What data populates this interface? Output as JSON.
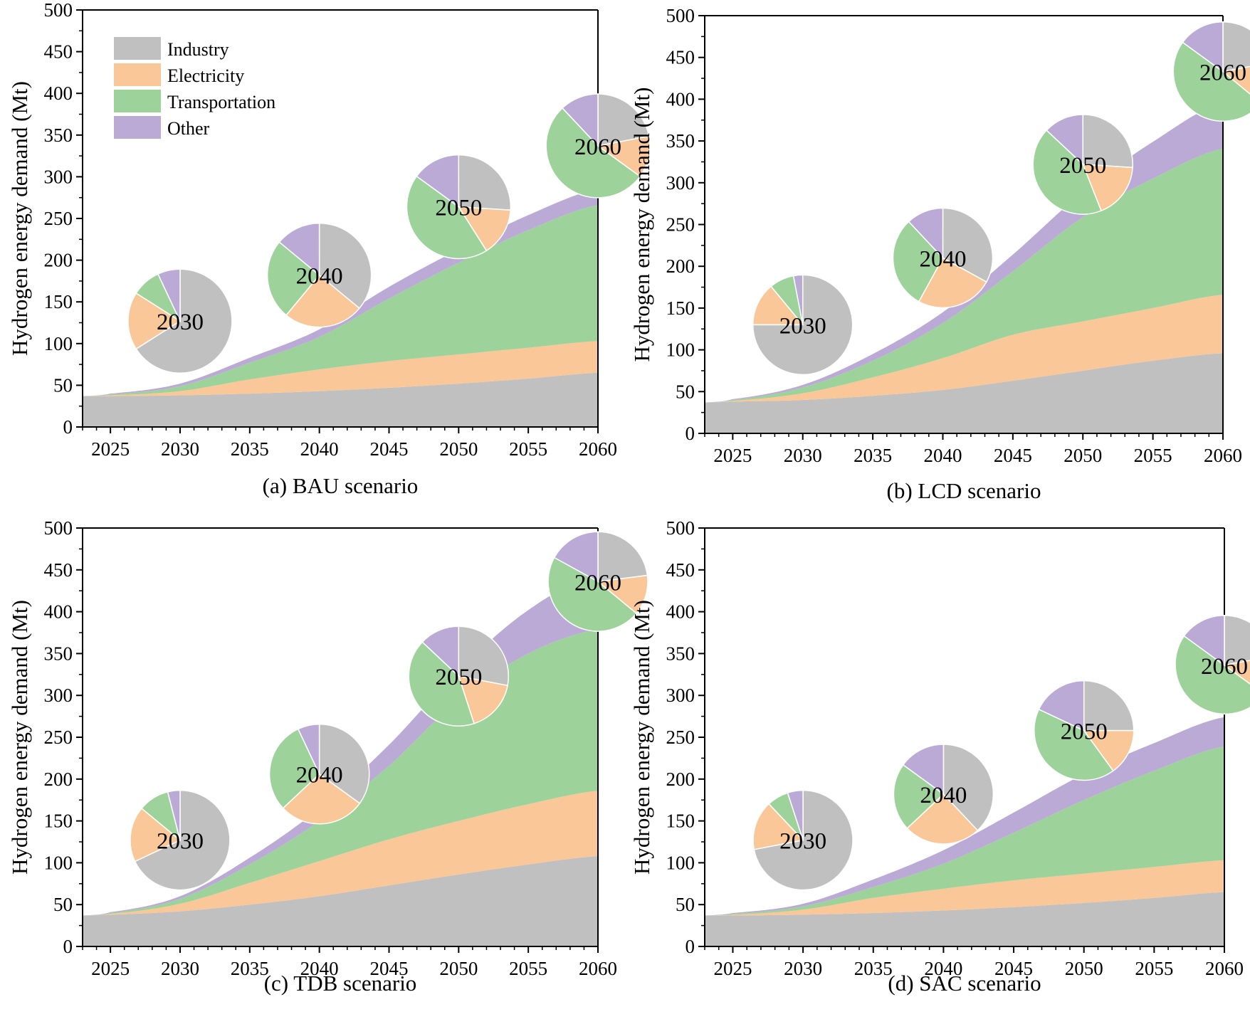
{
  "figure": {
    "series_order": [
      "Industry",
      "Electricity",
      "Transportation",
      "Other"
    ]
  },
  "legend": {
    "items": [
      {
        "label": "Industry",
        "color": "#c0c0c0"
      },
      {
        "label": "Electricity",
        "color": "#fac898"
      },
      {
        "label": "Transportation",
        "color": "#9dd39b"
      },
      {
        "label": "Other",
        "color": "#bba9d6"
      }
    ]
  },
  "chart_data": [
    {
      "type": "area",
      "panel": "a",
      "caption": "(a) BAU scenario",
      "ylabel": "Hydrogen energy demand (Mt)",
      "xlabel": "",
      "xlim": [
        2023,
        2060
      ],
      "ylim": [
        0,
        500
      ],
      "xticks": [
        2025,
        2030,
        2035,
        2040,
        2045,
        2050,
        2055,
        2060
      ],
      "yticks": [
        0,
        50,
        100,
        150,
        200,
        250,
        300,
        350,
        400,
        450,
        500
      ],
      "x": [
        2023,
        2025,
        2030,
        2035,
        2040,
        2045,
        2050,
        2055,
        2060
      ],
      "series": [
        {
          "name": "Industry",
          "values": [
            37,
            37,
            38,
            40,
            43,
            47,
            52,
            58,
            65
          ]
        },
        {
          "name": "Electricity",
          "values": [
            0,
            1,
            5,
            17,
            26,
            32,
            35,
            37,
            38
          ]
        },
        {
          "name": "Transportation",
          "values": [
            0,
            1,
            6,
            20,
            39,
            75,
            110,
            141,
            163
          ]
        },
        {
          "name": "Other",
          "values": [
            0,
            1,
            3,
            6,
            9,
            14,
            16,
            18,
            19
          ]
        }
      ],
      "pies": [
        {
          "year": "2030",
          "x": 2030,
          "y": 127,
          "shares": [
            0.66,
            0.18,
            0.09,
            0.07
          ]
        },
        {
          "year": "2040",
          "x": 2040,
          "y": 182,
          "shares": [
            0.36,
            0.25,
            0.25,
            0.14
          ]
        },
        {
          "year": "2050",
          "x": 2050,
          "y": 264,
          "shares": [
            0.26,
            0.15,
            0.44,
            0.15
          ]
        },
        {
          "year": "2060",
          "x": 2060,
          "y": 337,
          "shares": [
            0.22,
            0.13,
            0.53,
            0.12
          ]
        }
      ]
    },
    {
      "type": "area",
      "panel": "b",
      "caption": "(b) LCD scenario",
      "ylabel": "Hydrogen energy demand (Mt)",
      "xlabel": "",
      "xlim": [
        2023,
        2060
      ],
      "ylim": [
        0,
        500
      ],
      "xticks": [
        2025,
        2030,
        2035,
        2040,
        2045,
        2050,
        2055,
        2060
      ],
      "yticks": [
        0,
        50,
        100,
        150,
        200,
        250,
        300,
        350,
        400,
        450,
        500
      ],
      "x": [
        2023,
        2025,
        2030,
        2035,
        2040,
        2045,
        2050,
        2055,
        2060
      ],
      "series": [
        {
          "name": "Industry",
          "values": [
            37,
            38,
            40,
            45,
            52,
            63,
            75,
            87,
            96
          ]
        },
        {
          "name": "Electricity",
          "values": [
            0,
            1,
            8,
            22,
            38,
            55,
            59,
            63,
            70
          ]
        },
        {
          "name": "Transportation",
          "values": [
            0,
            1,
            7,
            20,
            42,
            76,
            125,
            155,
            175
          ]
        },
        {
          "name": "Other",
          "values": [
            0,
            1,
            3,
            8,
            13,
            20,
            30,
            44,
            55
          ]
        }
      ],
      "pies": [
        {
          "year": "2030",
          "x": 2030,
          "y": 130,
          "shares": [
            0.75,
            0.14,
            0.08,
            0.03
          ]
        },
        {
          "year": "2040",
          "x": 2040,
          "y": 210,
          "shares": [
            0.33,
            0.25,
            0.3,
            0.12
          ]
        },
        {
          "year": "2050",
          "x": 2050,
          "y": 322,
          "shares": [
            0.26,
            0.18,
            0.43,
            0.13
          ]
        },
        {
          "year": "2060",
          "x": 2060,
          "y": 433,
          "shares": [
            0.22,
            0.14,
            0.49,
            0.15
          ]
        }
      ]
    },
    {
      "type": "area",
      "panel": "c",
      "caption": "(c) TDB scenario",
      "ylabel": "Hydrogen energy demand (Mt)",
      "xlabel": "",
      "xlim": [
        2023,
        2060
      ],
      "ylim": [
        0,
        500
      ],
      "xticks": [
        2025,
        2030,
        2035,
        2040,
        2045,
        2050,
        2055,
        2060
      ],
      "yticks": [
        0,
        50,
        100,
        150,
        200,
        250,
        300,
        350,
        400,
        450,
        500
      ],
      "x": [
        2023,
        2025,
        2030,
        2035,
        2040,
        2045,
        2050,
        2055,
        2060
      ],
      "series": [
        {
          "name": "Industry",
          "values": [
            37,
            38,
            42,
            50,
            60,
            73,
            86,
            98,
            108
          ]
        },
        {
          "name": "Electricity",
          "values": [
            0,
            1,
            9,
            26,
            42,
            55,
            64,
            72,
            78
          ]
        },
        {
          "name": "Transportation",
          "values": [
            0,
            1,
            6,
            22,
            48,
            88,
            145,
            180,
            193
          ]
        },
        {
          "name": "Other",
          "values": [
            0,
            1,
            3,
            8,
            15,
            25,
            35,
            52,
            66
          ]
        }
      ],
      "pies": [
        {
          "year": "2030",
          "x": 2030,
          "y": 127,
          "shares": [
            0.68,
            0.18,
            0.1,
            0.04
          ]
        },
        {
          "year": "2040",
          "x": 2040,
          "y": 206,
          "shares": [
            0.35,
            0.28,
            0.3,
            0.07
          ]
        },
        {
          "year": "2050",
          "x": 2050,
          "y": 323,
          "shares": [
            0.28,
            0.17,
            0.42,
            0.13
          ]
        },
        {
          "year": "2060",
          "x": 2060,
          "y": 436,
          "shares": [
            0.23,
            0.13,
            0.47,
            0.17
          ]
        }
      ]
    },
    {
      "type": "area",
      "panel": "d",
      "caption": "(d) SAC scenario",
      "ylabel": "Hydrogen energy demand (Mt)",
      "xlabel": "",
      "xlim": [
        2023,
        2060
      ],
      "ylim": [
        0,
        500
      ],
      "xticks": [
        2025,
        2030,
        2035,
        2040,
        2045,
        2050,
        2055,
        2060
      ],
      "yticks": [
        0,
        50,
        100,
        150,
        200,
        250,
        300,
        350,
        400,
        450,
        500
      ],
      "x": [
        2023,
        2025,
        2030,
        2035,
        2040,
        2045,
        2050,
        2055,
        2060
      ],
      "series": [
        {
          "name": "Industry",
          "values": [
            37,
            37,
            38,
            40,
            43,
            47,
            52,
            58,
            65
          ]
        },
        {
          "name": "Electricity",
          "values": [
            0,
            1,
            6,
            18,
            26,
            32,
            35,
            37,
            38
          ]
        },
        {
          "name": "Transportation",
          "values": [
            0,
            1,
            4,
            13,
            30,
            57,
            88,
            115,
            136
          ]
        },
        {
          "name": "Other",
          "values": [
            0,
            1,
            3,
            9,
            16,
            24,
            31,
            33,
            35
          ]
        }
      ],
      "pies": [
        {
          "year": "2030",
          "x": 2030,
          "y": 127,
          "shares": [
            0.72,
            0.16,
            0.07,
            0.05
          ]
        },
        {
          "year": "2040",
          "x": 2040,
          "y": 182,
          "shares": [
            0.38,
            0.25,
            0.22,
            0.15
          ]
        },
        {
          "year": "2050",
          "x": 2050,
          "y": 258,
          "shares": [
            0.25,
            0.15,
            0.42,
            0.18
          ]
        },
        {
          "year": "2060",
          "x": 2060,
          "y": 336,
          "shares": [
            0.22,
            0.13,
            0.5,
            0.15
          ]
        }
      ]
    }
  ]
}
